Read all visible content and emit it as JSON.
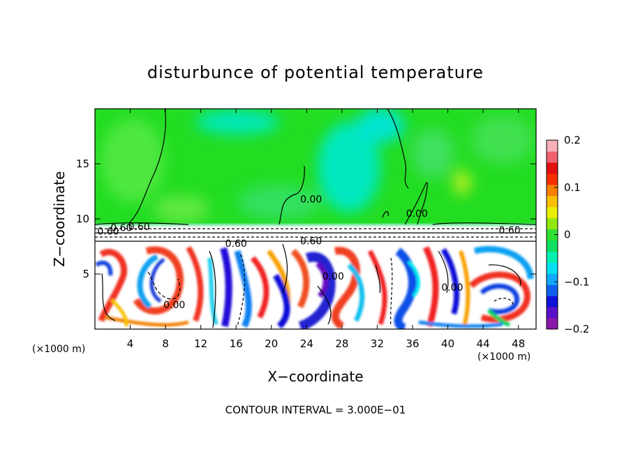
{
  "chart_data": {
    "type": "heatmap",
    "title": "disturbunce of potential temperature",
    "xlabel": "X−coordinate",
    "ylabel": "Z−coordinate",
    "x_unit_left": "(×1000 m)",
    "x_unit_right": "(×1000 m)",
    "footer": "CONTOUR INTERVAL = 3.000E−01",
    "xlim": [
      0,
      50
    ],
    "ylim": [
      0,
      20
    ],
    "x_ticks": [
      4,
      8,
      12,
      16,
      20,
      24,
      28,
      32,
      36,
      40,
      44,
      48
    ],
    "y_ticks": [
      5,
      10,
      15
    ],
    "colorbar": {
      "range": [
        -0.2,
        0.2
      ],
      "ticks": [
        0.2,
        0.1,
        0,
        -0.1,
        -0.2
      ],
      "tick_labels": [
        "0.2",
        "0.1",
        "0",
        "−0.1",
        "−0.2"
      ],
      "colors": [
        "#8a18a8",
        "#5a10c8",
        "#1010d8",
        "#1060f0",
        "#10a8f8",
        "#00e0f0",
        "#00f0b0",
        "#10e060",
        "#30e030",
        "#90e810",
        "#e8f000",
        "#f8c000",
        "#f88000",
        "#f83000",
        "#e01010",
        "#f06070",
        "#f8b0b8"
      ]
    },
    "contour_labels": [
      {
        "text": "0.60",
        "x": 1.5,
        "z": 8.9
      },
      {
        "text": "0.60",
        "x": 3.0,
        "z": 9.2
      },
      {
        "text": "0.60",
        "x": 5.0,
        "z": 9.3
      },
      {
        "text": "0.00",
        "x": 9.0,
        "z": 2.2
      },
      {
        "text": "0.60",
        "x": 16.0,
        "z": 7.8
      },
      {
        "text": "0.00",
        "x": 24.5,
        "z": 11.8
      },
      {
        "text": "0.60",
        "x": 24.5,
        "z": 8.0
      },
      {
        "text": "0.00",
        "x": 27.0,
        "z": 4.8
      },
      {
        "text": "0.00",
        "x": 36.5,
        "z": 10.5
      },
      {
        "text": "0.00",
        "x": 40.5,
        "z": 3.8
      },
      {
        "text": "0.60",
        "x": 47.0,
        "z": 9.0
      }
    ]
  }
}
